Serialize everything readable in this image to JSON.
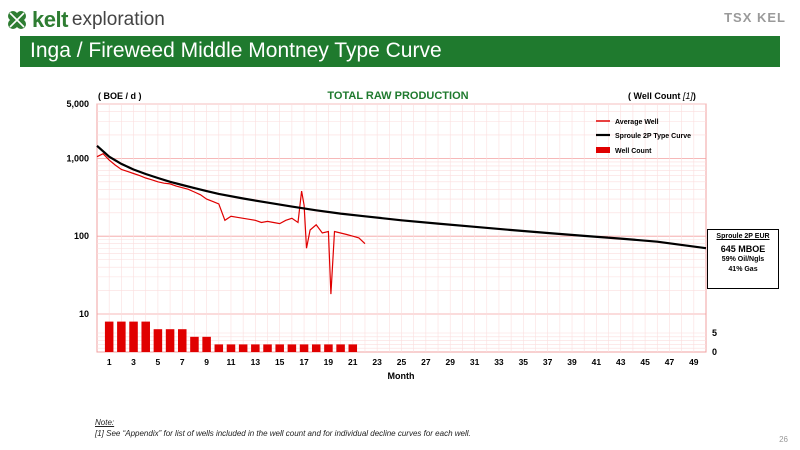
{
  "header": {
    "logo_word": "kelt",
    "logo_sub": "exploration",
    "tsx_logo_text": "TSX KEL",
    "banner_title": "Inga / Fireweed Middle Montney Type Curve",
    "colors": {
      "banner": "#1f7a2e",
      "logo_green": "#2e7d32"
    }
  },
  "chart_data": {
    "type": "line",
    "title": "TOTAL RAW PRODUCTION",
    "ylabel_left": "( BOE / d )",
    "ylabel_right": "( Well Count ",
    "ylabel_right_ref": "[1]",
    "ylabel_right_close": ")",
    "xlabel": "Month",
    "x_range": [
      0,
      50
    ],
    "x_ticks": [
      "1",
      "3",
      "5",
      "7",
      "9",
      "11",
      "13",
      "15",
      "17",
      "19",
      "21",
      "23",
      "25",
      "27",
      "29",
      "31",
      "33",
      "35",
      "37",
      "39",
      "41",
      "43",
      "45",
      "47",
      "49"
    ],
    "y_scale": "log",
    "y_range": [
      10,
      5000
    ],
    "y_ticks": [
      "5,000",
      "1,000",
      "100",
      "10"
    ],
    "y2_range": [
      0,
      10
    ],
    "y2_ticks": [
      "5",
      "0"
    ],
    "grid": true,
    "legend_position": "top-right",
    "legend": [
      "Average Well",
      "Sproule 2P Type Curve",
      "Well Count"
    ],
    "series": [
      {
        "name": "Average Well",
        "color": "#e00000",
        "x": [
          0,
          0.5,
          1,
          1.5,
          2,
          2.5,
          3,
          3.5,
          4,
          4.5,
          5,
          5.5,
          6,
          6.5,
          7,
          7.5,
          8,
          8.5,
          9,
          9.5,
          10,
          10.5,
          11,
          11.5,
          12,
          12.5,
          13,
          13.5,
          14,
          14.5,
          15,
          15.5,
          16,
          16.5,
          16.8,
          17,
          17.2,
          17.5,
          18,
          18.5,
          19,
          19.2,
          19.5,
          20,
          20.5,
          21,
          21.5,
          22
        ],
        "y": [
          1050,
          1150,
          950,
          820,
          720,
          680,
          640,
          600,
          560,
          530,
          500,
          480,
          470,
          440,
          420,
          400,
          370,
          340,
          300,
          280,
          260,
          160,
          180,
          175,
          170,
          165,
          160,
          150,
          155,
          150,
          145,
          160,
          170,
          150,
          380,
          250,
          70,
          120,
          140,
          110,
          115,
          18,
          115,
          110,
          105,
          100,
          95,
          80
        ]
      },
      {
        "name": "Sproule 2P Type Curve",
        "color": "#000000",
        "x": [
          0,
          1,
          2,
          3,
          4,
          5,
          6,
          7,
          8,
          9,
          10,
          12,
          14,
          16,
          18,
          20,
          22,
          25,
          28,
          31,
          34,
          37,
          40,
          43,
          46,
          50
        ],
        "y": [
          1450,
          1050,
          850,
          720,
          630,
          560,
          500,
          455,
          415,
          380,
          350,
          305,
          270,
          240,
          215,
          195,
          180,
          160,
          145,
          132,
          120,
          110,
          101,
          93,
          85,
          70
        ]
      },
      {
        "name": "Well Count",
        "color": "#e00000",
        "x": [
          1,
          2,
          3,
          4,
          5,
          6,
          7,
          8,
          9,
          10,
          11,
          12,
          13,
          14,
          15,
          16,
          17,
          18,
          19,
          20,
          21
        ],
        "y": [
          8,
          8,
          8,
          8,
          6,
          6,
          6,
          4,
          4,
          2,
          2,
          2,
          2,
          2,
          2,
          2,
          2,
          2,
          2,
          2,
          2
        ]
      }
    ],
    "eur_box": {
      "title": "Sproule 2P EUR",
      "value": "645 MBOE",
      "line1": "59% Oil/Ngls",
      "line2": "41% Gas"
    }
  },
  "footer": {
    "note_head": "Note:",
    "note_text": "[1] See “Appendix” for list of wells included in the well count and for individual decline curves for each well.",
    "page_number": "26"
  }
}
